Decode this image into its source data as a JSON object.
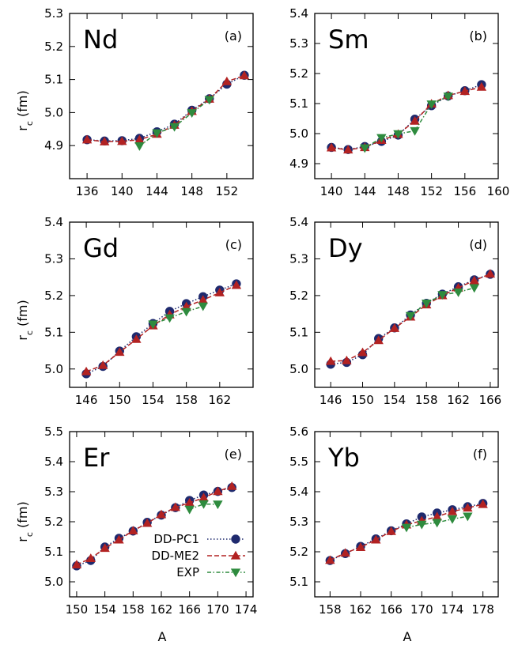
{
  "figure": {
    "xlabel": "A",
    "ylabel_main": "r",
    "ylabel_sub": "c",
    "ylabel_unit": " (fm)",
    "legend": {
      "placement": "bottom-right of panel (e)",
      "entries": [
        {
          "label": "DD-PC1",
          "series": "DD-PC1"
        },
        {
          "label": "DD-ME2",
          "series": "DD-ME2"
        },
        {
          "label": "EXP",
          "series": "EXP"
        }
      ]
    },
    "series_styles": {
      "DD-PC1": {
        "color": "#1f2a6e",
        "marker": "circle",
        "line": "dotted"
      },
      "DD-ME2": {
        "color": "#b22222",
        "marker": "triangle-up",
        "line": "dashed"
      },
      "EXP": {
        "color": "#2e8b3e",
        "marker": "triangle-down",
        "line": "dash-dot"
      }
    }
  },
  "chart_data": [
    {
      "type": "line",
      "element": "Nd",
      "panel": "(a)",
      "xlim": [
        134,
        155
      ],
      "ylim": [
        4.8,
        5.3
      ],
      "xticks": [
        136,
        140,
        144,
        148,
        152
      ],
      "yticks": [
        4.9,
        5.0,
        5.1,
        5.2,
        5.3
      ],
      "series": [
        {
          "name": "DD-PC1",
          "x": [
            136,
            138,
            140,
            142,
            144,
            146,
            148,
            150,
            152,
            154
          ],
          "y": [
            4.918,
            4.914,
            4.915,
            4.922,
            4.942,
            4.965,
            5.007,
            5.042,
            5.086,
            5.113
          ]
        },
        {
          "name": "DD-ME2",
          "x": [
            136,
            138,
            140,
            142,
            144,
            146,
            148,
            150,
            152,
            154
          ],
          "y": [
            4.918,
            4.912,
            4.913,
            4.918,
            4.935,
            4.962,
            5.004,
            5.041,
            5.094,
            5.112
          ]
        },
        {
          "name": "EXP",
          "x": [
            142,
            144,
            146,
            148,
            150
          ],
          "y": [
            4.899,
            4.938,
            4.957,
            4.999,
            5.039
          ]
        }
      ]
    },
    {
      "type": "line",
      "element": "Sm",
      "panel": "(b)",
      "xlim": [
        138,
        160
      ],
      "ylim": [
        4.85,
        5.4
      ],
      "xticks": [
        140,
        144,
        148,
        152,
        156,
        160
      ],
      "yticks": [
        4.9,
        5.0,
        5.1,
        5.2,
        5.3,
        5.4
      ],
      "series": [
        {
          "name": "DD-PC1",
          "x": [
            140,
            142,
            144,
            146,
            148,
            150,
            152,
            154,
            156,
            158
          ],
          "y": [
            4.954,
            4.947,
            4.957,
            4.974,
            4.995,
            5.048,
            5.093,
            5.125,
            5.143,
            5.163
          ]
        },
        {
          "name": "DD-ME2",
          "x": [
            140,
            142,
            144,
            146,
            148,
            150,
            152,
            154,
            156,
            158
          ],
          "y": [
            4.953,
            4.946,
            4.954,
            4.978,
            4.998,
            5.042,
            5.099,
            5.127,
            5.141,
            5.155
          ]
        },
        {
          "name": "EXP",
          "x": [
            144,
            146,
            148,
            150,
            152,
            154
          ],
          "y": [
            4.952,
            4.986,
            4.999,
            5.009,
            5.098,
            5.124
          ]
        }
      ]
    },
    {
      "type": "line",
      "element": "Gd",
      "panel": "(c)",
      "xlim": [
        144,
        166
      ],
      "ylim": [
        4.95,
        5.4
      ],
      "xticks": [
        146,
        150,
        154,
        158,
        162
      ],
      "yticks": [
        5.0,
        5.1,
        5.2,
        5.3,
        5.4
      ],
      "series": [
        {
          "name": "DD-PC1",
          "x": [
            146,
            148,
            150,
            152,
            154,
            156,
            158,
            160,
            162,
            164
          ],
          "y": [
            4.987,
            5.007,
            5.049,
            5.088,
            5.124,
            5.157,
            5.178,
            5.197,
            5.215,
            5.232
          ]
        },
        {
          "name": "DD-ME2",
          "x": [
            146,
            148,
            150,
            152,
            154,
            156,
            158,
            160,
            162,
            164
          ],
          "y": [
            4.993,
            5.01,
            5.046,
            5.081,
            5.118,
            5.148,
            5.17,
            5.188,
            5.208,
            5.228
          ]
        },
        {
          "name": "EXP",
          "x": [
            154,
            156,
            158,
            160
          ],
          "y": [
            5.122,
            5.139,
            5.156,
            5.171
          ]
        }
      ]
    },
    {
      "type": "line",
      "element": "Dy",
      "panel": "(d)",
      "xlim": [
        144,
        167
      ],
      "ylim": [
        4.95,
        5.4
      ],
      "xticks": [
        146,
        150,
        154,
        158,
        162,
        166
      ],
      "yticks": [
        5.0,
        5.1,
        5.2,
        5.3,
        5.4
      ],
      "series": [
        {
          "name": "DD-PC1",
          "x": [
            146,
            148,
            150,
            152,
            154,
            156,
            158,
            160,
            162,
            164,
            166
          ],
          "y": [
            5.013,
            5.018,
            5.039,
            5.083,
            5.112,
            5.147,
            5.179,
            5.204,
            5.224,
            5.243,
            5.258
          ]
        },
        {
          "name": "DD-ME2",
          "x": [
            146,
            148,
            150,
            152,
            154,
            156,
            158,
            160,
            162,
            164,
            166
          ],
          "y": [
            5.021,
            5.023,
            5.045,
            5.078,
            5.111,
            5.142,
            5.175,
            5.2,
            5.221,
            5.241,
            5.259
          ]
        },
        {
          "name": "EXP",
          "x": [
            156,
            158,
            160,
            162,
            164
          ],
          "y": [
            5.145,
            5.179,
            5.202,
            5.209,
            5.221
          ]
        }
      ]
    },
    {
      "type": "line",
      "element": "Er",
      "panel": "(e)",
      "xlim": [
        149,
        175
      ],
      "ylim": [
        4.95,
        5.5
      ],
      "xticks": [
        150,
        154,
        158,
        162,
        166,
        170,
        174
      ],
      "yticks": [
        5.0,
        5.1,
        5.2,
        5.3,
        5.4,
        5.5
      ],
      "series": [
        {
          "name": "DD-PC1",
          "x": [
            150,
            152,
            154,
            156,
            158,
            160,
            162,
            164,
            166,
            168,
            170,
            172
          ],
          "y": [
            5.053,
            5.071,
            5.116,
            5.145,
            5.169,
            5.198,
            5.222,
            5.247,
            5.271,
            5.289,
            5.301,
            5.314
          ]
        },
        {
          "name": "DD-ME2",
          "x": [
            150,
            152,
            154,
            156,
            158,
            160,
            162,
            164,
            166,
            168,
            170,
            172
          ],
          "y": [
            5.057,
            5.078,
            5.112,
            5.14,
            5.17,
            5.195,
            5.224,
            5.248,
            5.263,
            5.28,
            5.301,
            5.318
          ]
        },
        {
          "name": "EXP",
          "x": [
            166,
            168,
            170
          ],
          "y": [
            5.241,
            5.259,
            5.258
          ]
        }
      ]
    },
    {
      "type": "line",
      "element": "Yb",
      "panel": "(f)",
      "xlim": [
        156,
        180
      ],
      "ylim": [
        5.05,
        5.6
      ],
      "xticks": [
        158,
        162,
        166,
        170,
        174,
        178
      ],
      "yticks": [
        5.1,
        5.2,
        5.3,
        5.4,
        5.5,
        5.6
      ],
      "series": [
        {
          "name": "DD-PC1",
          "x": [
            158,
            160,
            162,
            164,
            166,
            168,
            170,
            172,
            174,
            176,
            178
          ],
          "y": [
            5.171,
            5.194,
            5.218,
            5.243,
            5.27,
            5.293,
            5.316,
            5.329,
            5.34,
            5.35,
            5.361
          ]
        },
        {
          "name": "DD-ME2",
          "x": [
            158,
            160,
            162,
            164,
            166,
            168,
            170,
            172,
            174,
            176,
            178
          ],
          "y": [
            5.172,
            5.196,
            5.215,
            5.24,
            5.268,
            5.29,
            5.303,
            5.317,
            5.334,
            5.346,
            5.358
          ]
        },
        {
          "name": "EXP",
          "x": [
            168,
            170,
            172,
            174,
            176
          ],
          "y": [
            5.281,
            5.291,
            5.297,
            5.309,
            5.318
          ]
        }
      ]
    }
  ]
}
